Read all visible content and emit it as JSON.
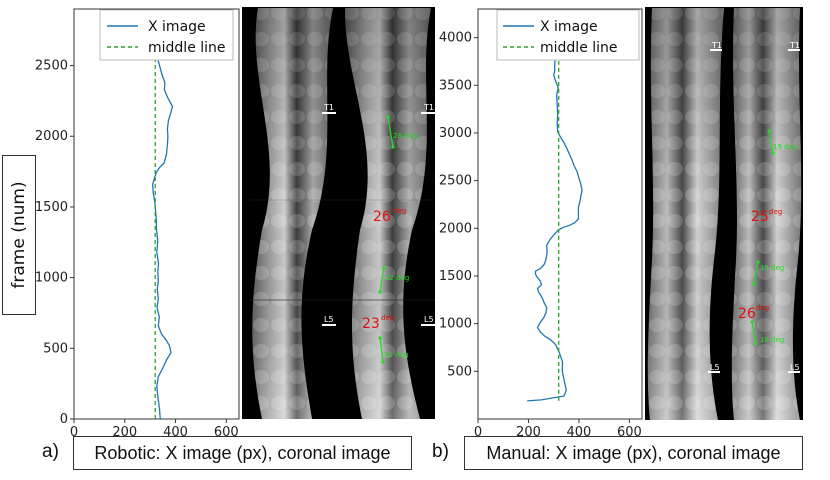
{
  "y_axis_label": "frame (num)",
  "chart_data": [
    {
      "type": "line",
      "panel": "a",
      "xlim": [
        0,
        650
      ],
      "ylim": [
        0,
        2900
      ],
      "x_ticks": [
        0,
        200,
        400,
        600
      ],
      "y_ticks": [
        0,
        500,
        1000,
        1500,
        2000,
        2500
      ],
      "grid": false,
      "legend_position": "top-right",
      "series": [
        {
          "name": "X image",
          "color": "#1f77b4",
          "style": "solid",
          "points": [
            [
              340,
              0
            ],
            [
              337,
              70
            ],
            [
              331,
              150
            ],
            [
              326,
              230
            ],
            [
              332,
              300
            ],
            [
              350,
              360
            ],
            [
              365,
              420
            ],
            [
              382,
              470
            ],
            [
              376,
              520
            ],
            [
              362,
              560
            ],
            [
              345,
              600
            ],
            [
              332,
              660
            ],
            [
              336,
              720
            ],
            [
              327,
              790
            ],
            [
              332,
              850
            ],
            [
              328,
              920
            ],
            [
              332,
              980
            ],
            [
              330,
              1040
            ],
            [
              333,
              1100
            ],
            [
              326,
              1180
            ],
            [
              330,
              1260
            ],
            [
              325,
              1340
            ],
            [
              324,
              1420
            ],
            [
              321,
              1480
            ],
            [
              318,
              1540
            ],
            [
              312,
              1600
            ],
            [
              310,
              1660
            ],
            [
              318,
              1710
            ],
            [
              326,
              1750
            ],
            [
              338,
              1780
            ],
            [
              355,
              1810
            ],
            [
              364,
              1870
            ],
            [
              368,
              1940
            ],
            [
              370,
              2000
            ],
            [
              368,
              2050
            ],
            [
              372,
              2110
            ],
            [
              380,
              2160
            ],
            [
              388,
              2210
            ],
            [
              370,
              2270
            ],
            [
              356,
              2330
            ],
            [
              358,
              2380
            ],
            [
              346,
              2440
            ],
            [
              337,
              2500
            ],
            [
              328,
              2560
            ],
            [
              333,
              2620
            ],
            [
              350,
              2690
            ],
            [
              340,
              2760
            ],
            [
              336,
              2820
            ],
            [
              341,
              2880
            ]
          ]
        },
        {
          "name": "middle line",
          "color": "#2ca02c",
          "style": "dashed",
          "points": [
            [
              320,
              0
            ],
            [
              320,
              2880
            ]
          ]
        }
      ],
      "caption_letter": "a)",
      "caption": "Robotic: X image (px), coronal image",
      "image_annotations": {
        "top_level": "T1",
        "bottom_level": "L5",
        "red_angles": [
          {
            "value": "26",
            "unit": "deg"
          },
          {
            "value": "23",
            "unit": "deg"
          }
        ],
        "green_angles": [
          "28 deg",
          "22 deg",
          "31 deg"
        ]
      }
    },
    {
      "type": "line",
      "panel": "b",
      "xlim": [
        0,
        650
      ],
      "ylim": [
        0,
        4300
      ],
      "x_ticks": [
        0,
        200,
        400,
        600
      ],
      "y_ticks": [
        500,
        1000,
        1500,
        2000,
        2500,
        3000,
        3500,
        4000
      ],
      "grid": false,
      "legend_position": "top-right",
      "series": [
        {
          "name": "X image",
          "color": "#1f77b4",
          "style": "solid",
          "points": [
            [
              195,
              190
            ],
            [
              250,
              200
            ],
            [
              340,
              240
            ],
            [
              350,
              300
            ],
            [
              342,
              400
            ],
            [
              334,
              500
            ],
            [
              335,
              600
            ],
            [
              322,
              700
            ],
            [
              308,
              780
            ],
            [
              288,
              830
            ],
            [
              264,
              870
            ],
            [
              248,
              910
            ],
            [
              236,
              960
            ],
            [
              246,
              1010
            ],
            [
              262,
              1070
            ],
            [
              270,
              1120
            ],
            [
              272,
              1170
            ],
            [
              262,
              1220
            ],
            [
              256,
              1260
            ],
            [
              248,
              1300
            ],
            [
              240,
              1330
            ],
            [
              236,
              1370
            ],
            [
              252,
              1410
            ],
            [
              246,
              1450
            ],
            [
              234,
              1490
            ],
            [
              228,
              1520
            ],
            [
              228,
              1550
            ],
            [
              248,
              1580
            ],
            [
              262,
              1620
            ],
            [
              268,
              1660
            ],
            [
              272,
              1710
            ],
            [
              274,
              1760
            ],
            [
              272,
              1820
            ],
            [
              285,
              1880
            ],
            [
              300,
              1930
            ],
            [
              318,
              1980
            ],
            [
              338,
              2010
            ],
            [
              362,
              2030
            ],
            [
              384,
              2060
            ],
            [
              398,
              2100
            ],
            [
              398,
              2160
            ],
            [
              398,
              2220
            ],
            [
              404,
              2280
            ],
            [
              408,
              2340
            ],
            [
              412,
              2400
            ],
            [
              408,
              2460
            ],
            [
              400,
              2530
            ],
            [
              392,
              2600
            ],
            [
              380,
              2660
            ],
            [
              372,
              2720
            ],
            [
              362,
              2780
            ],
            [
              350,
              2850
            ],
            [
              338,
              2910
            ],
            [
              326,
              2960
            ],
            [
              316,
              3010
            ],
            [
              314,
              3100
            ],
            [
              316,
              3200
            ],
            [
              314,
              3300
            ],
            [
              312,
              3400
            ],
            [
              318,
              3470
            ],
            [
              310,
              3530
            ],
            [
              304,
              3570
            ],
            [
              300,
              3610
            ],
            [
              304,
              3650
            ],
            [
              304,
              3700
            ],
            [
              305,
              3760
            ]
          ]
        },
        {
          "name": "middle line",
          "color": "#2ca02c",
          "style": "dashed",
          "points": [
            [
              320,
              190
            ],
            [
              320,
              3760
            ]
          ]
        }
      ],
      "caption_letter": "b)",
      "caption": "Manual: X image (px), coronal image",
      "image_annotations": {
        "top_level": "T1",
        "bottom_level": "L5",
        "red_angles": [
          {
            "value": "25",
            "unit": "deg"
          },
          {
            "value": "26",
            "unit": "deg"
          }
        ],
        "green_angles": [
          "19 deg",
          "15 deg",
          "18 deg"
        ]
      }
    }
  ]
}
